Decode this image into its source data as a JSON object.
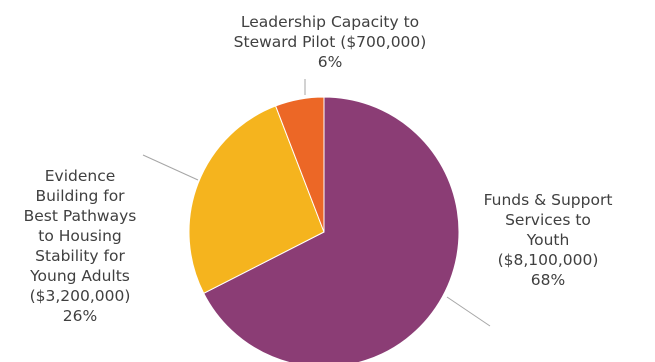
{
  "chart_data": {
    "type": "pie",
    "title": "",
    "slices": [
      {
        "label_lines": [
          "Funds & Support",
          "Services to",
          "Youth",
          "($8,100,000)",
          "68%"
        ],
        "value": 8100000,
        "percent": 68,
        "color": "#8b3d75"
      },
      {
        "label_lines": [
          "Evidence",
          "Building for",
          "Best Pathways",
          "to Housing",
          "Stability for",
          "Young Adults",
          "($3,200,000)",
          "26%"
        ],
        "value": 3200000,
        "percent": 26,
        "color": "#f5b41e"
      },
      {
        "label_lines": [
          "Leadership Capacity to",
          "Steward Pilot ($700,000)",
          "6%"
        ],
        "value": 700000,
        "percent": 6,
        "color": "#ec6726"
      }
    ],
    "legend": "none",
    "start_angle": "12 o'clock",
    "direction": "clockwise"
  }
}
